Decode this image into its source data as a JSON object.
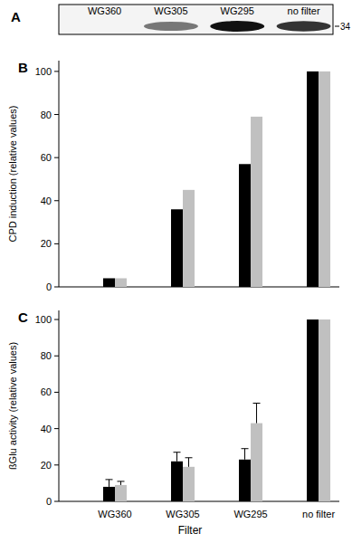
{
  "chart_data": [
    {
      "type": "blot",
      "title": "A",
      "categories": [
        "WG360",
        "WG305",
        "WG295",
        "no filter"
      ],
      "values": [
        0,
        55,
        100,
        85
      ],
      "annotations": [
        "34"
      ],
      "color": "#111111",
      "tick_labels": "x"
    },
    {
      "type": "bar",
      "title": "B",
      "y_label": "CPD induction (relative values)",
      "categories": [
        null,
        null,
        null,
        null
      ],
      "series": [
        {
          "color": "#000000",
          "values": [
            4,
            36,
            57,
            100
          ]
        },
        {
          "color": "#c0c0c0",
          "values": [
            4,
            45,
            79,
            100
          ]
        }
      ],
      "ylim": [
        0,
        105
      ],
      "yticks": [
        0,
        20,
        40,
        60,
        80,
        100
      ],
      "tick_labels": "y"
    },
    {
      "type": "bar",
      "title": "C",
      "x_label": "Filter",
      "y_label": "ßGlu activity (relative values)",
      "categories": [
        "WG360",
        "WG305",
        "WG295",
        "no filter"
      ],
      "series": [
        {
          "color": "#000000",
          "values": [
            8,
            22,
            23,
            100
          ],
          "errors": [
            4,
            5,
            6,
            0
          ]
        },
        {
          "color": "#c0c0c0",
          "values": [
            9,
            19,
            43,
            100
          ],
          "errors": [
            2,
            5,
            11,
            0
          ]
        }
      ],
      "ylim": [
        0,
        105
      ],
      "yticks": [
        0,
        20,
        40,
        60,
        80,
        100
      ]
    }
  ]
}
